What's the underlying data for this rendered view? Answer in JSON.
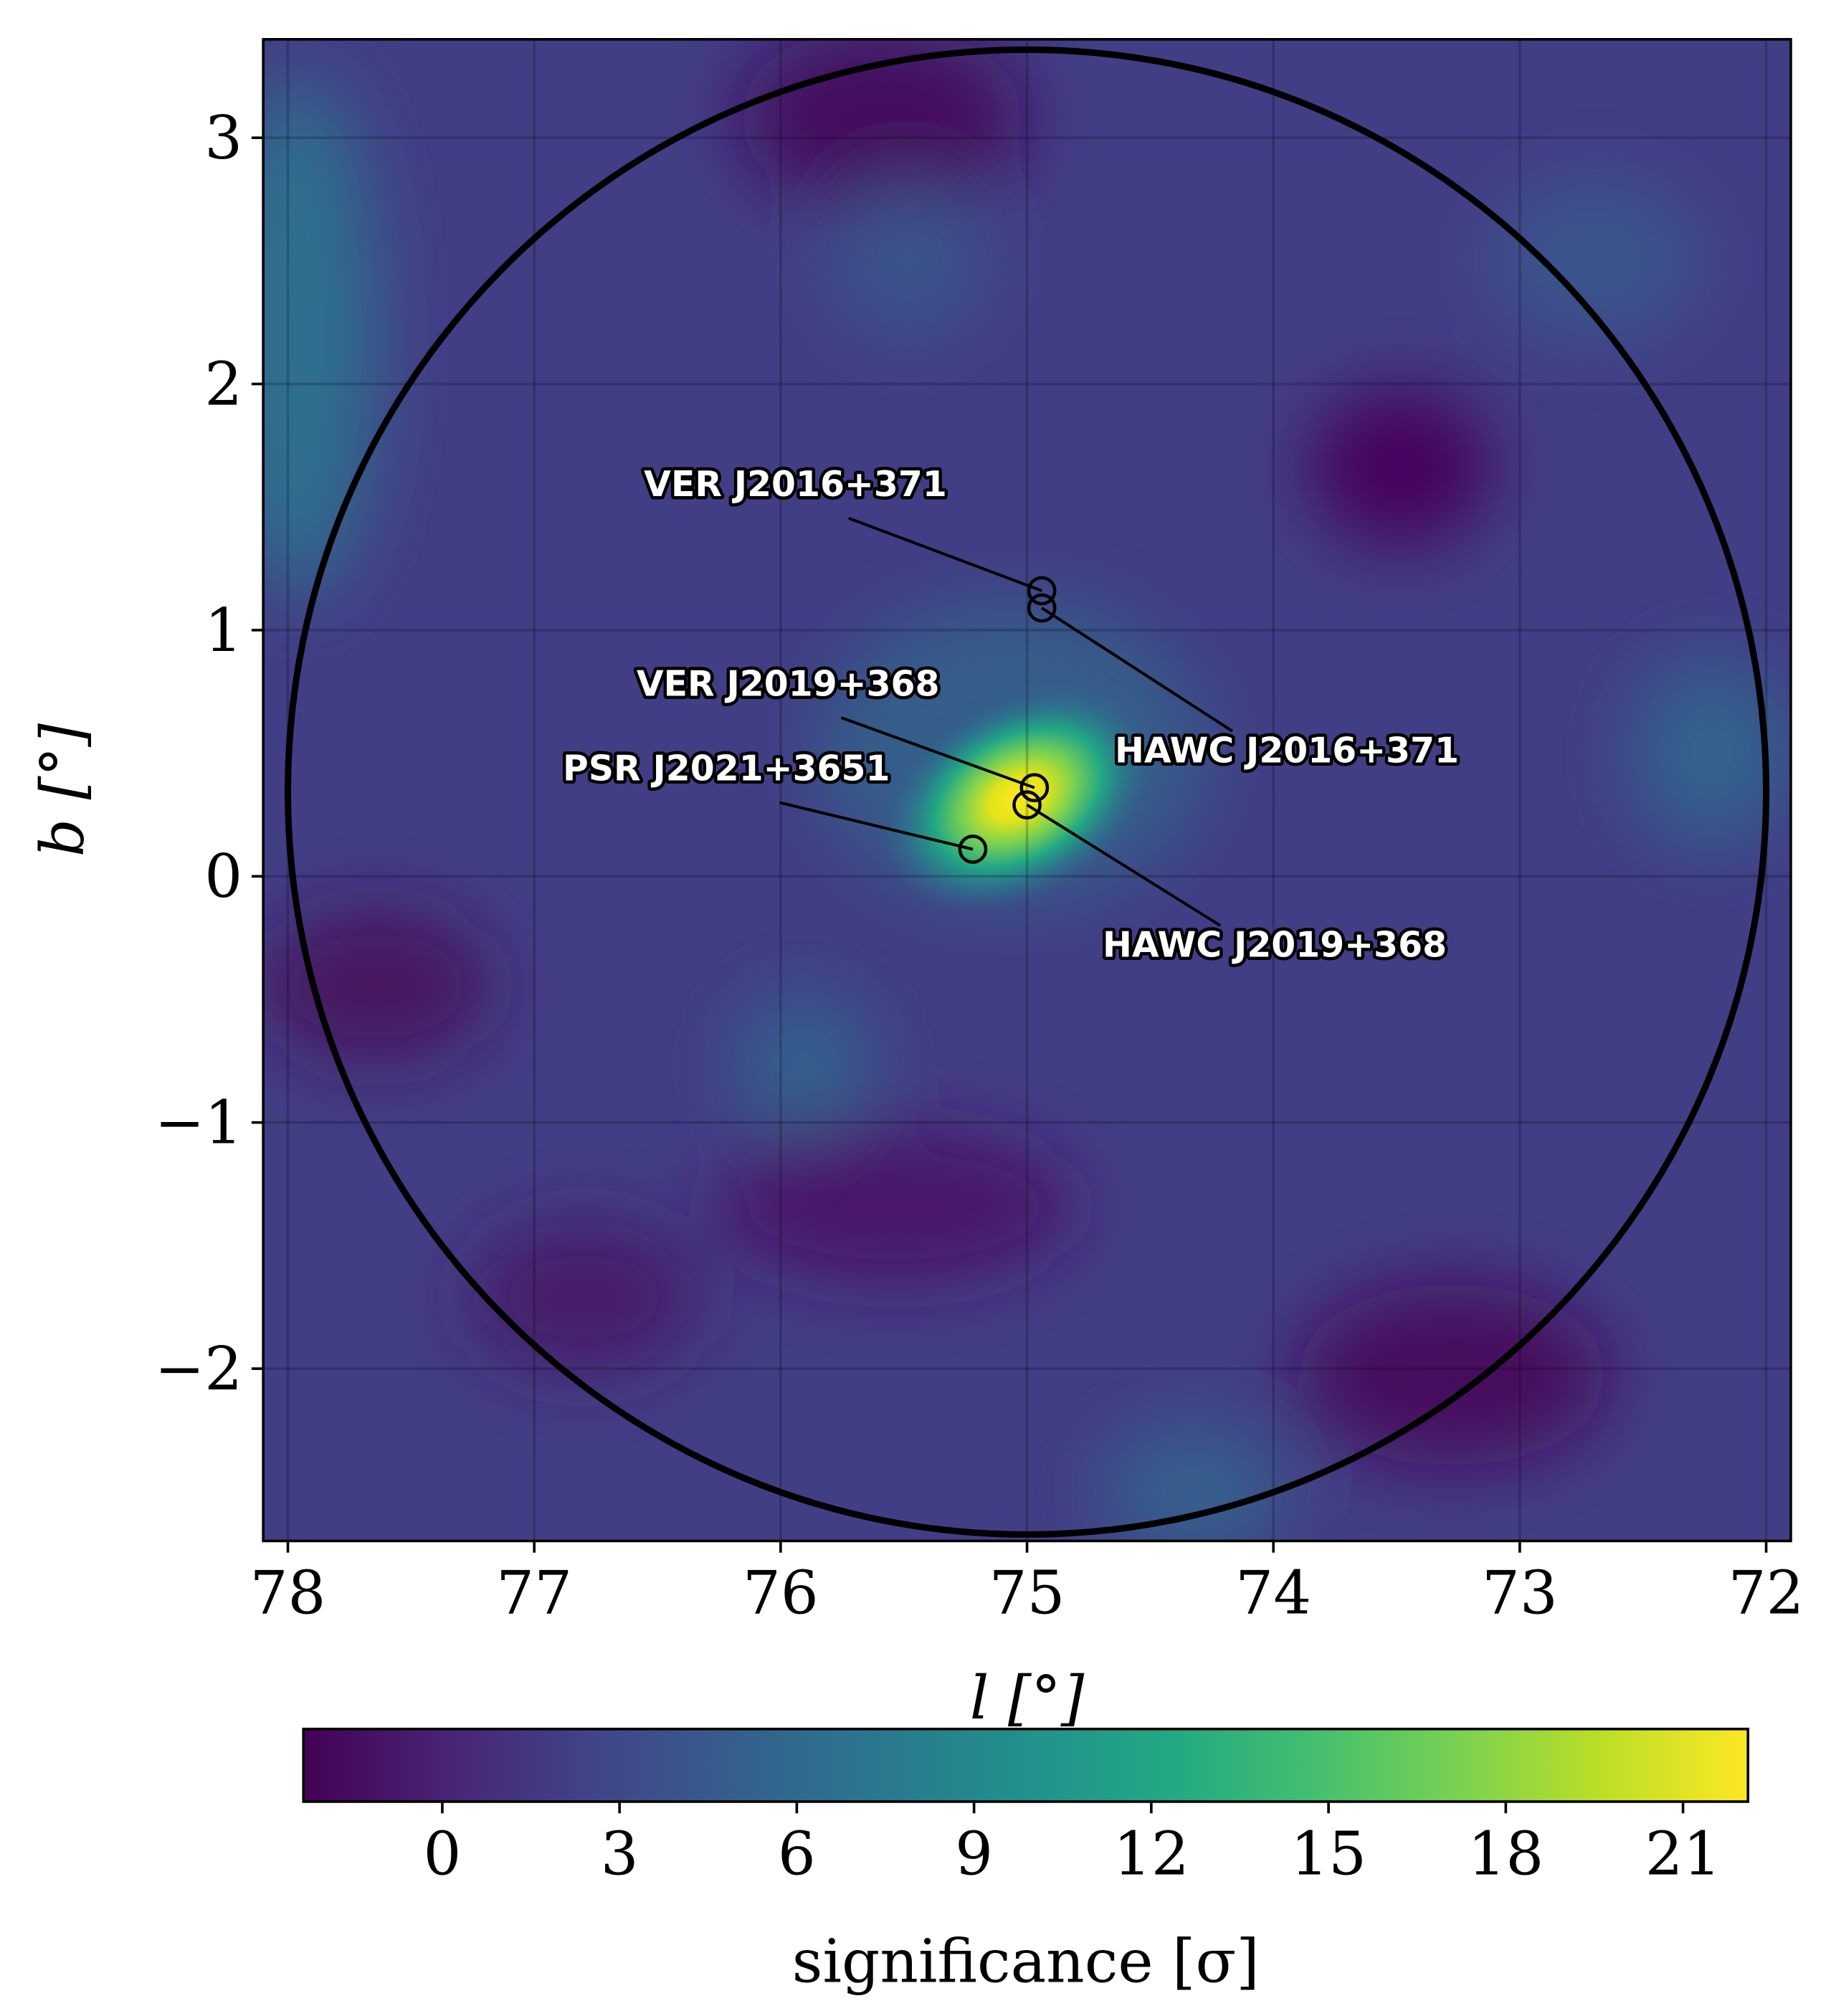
{
  "chart_data": {
    "type": "skymap",
    "xlabel": "l [°]",
    "ylabel": "b [°]",
    "xlim": [
      78.1,
      71.9
    ],
    "ylim": [
      -2.7,
      3.4
    ],
    "xticks": [
      78,
      77,
      76,
      75,
      74,
      73,
      72
    ],
    "yticks": [
      {
        "value": -2,
        "label": "−2"
      },
      {
        "value": -1,
        "label": "−1"
      },
      0,
      1,
      2,
      3
    ],
    "grid": true,
    "colorbar": {
      "label": "significance [σ]",
      "colormap": "viridis",
      "lim": [
        -2.35,
        22.1
      ],
      "ticks": [
        0,
        3,
        6,
        9,
        12,
        15,
        18,
        21
      ]
    },
    "sources": [
      {
        "name": "VER J2016+371",
        "l": 74.94,
        "b": 1.16
      },
      {
        "name": "HAWC J2016+371",
        "l": 74.94,
        "b": 1.09
      },
      {
        "name": "VER J2019+368",
        "l": 74.97,
        "b": 0.36
      },
      {
        "name": "HAWC J2019+368",
        "l": 75.0,
        "b": 0.29
      },
      {
        "name": "PSR J2021+3651",
        "l": 75.22,
        "b": 0.11
      }
    ]
  }
}
